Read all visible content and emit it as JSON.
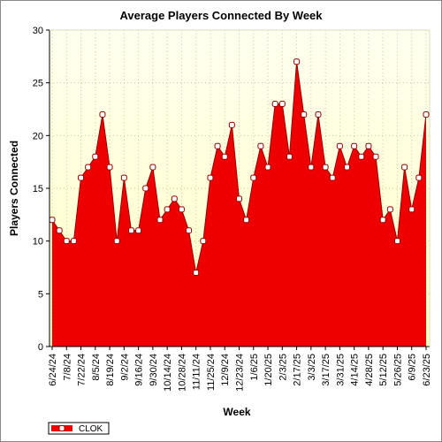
{
  "chart_data": {
    "type": "area",
    "title": "Average Players Connected By Week",
    "xlabel": "Week",
    "ylabel": "Players Connected",
    "ylim": [
      0,
      30
    ],
    "yticks": [
      0,
      5,
      10,
      15,
      20,
      25,
      30
    ],
    "grid": true,
    "legend_position": "bottom-left",
    "colors": {
      "plot_bg_top": "#fffff0",
      "plot_bg_bottom": "#ffffc4",
      "area_fill": "#ee0000",
      "line": "#990000",
      "marker_fill": "#ffffff"
    },
    "x_tick_labels": [
      "6/24/24",
      "7/8/24",
      "7/22/24",
      "8/5/24",
      "8/19/24",
      "9/2/24",
      "9/16/24",
      "9/30/24",
      "10/14/24",
      "10/28/24",
      "11/11/24",
      "11/25/24",
      "12/9/24",
      "12/23/24",
      "1/6/25",
      "1/20/25",
      "2/3/25",
      "2/17/25",
      "3/3/25",
      "3/17/25",
      "3/31/25",
      "4/14/25",
      "4/28/25",
      "5/12/25",
      "5/26/25",
      "6/9/25",
      "6/23/25"
    ],
    "x": [
      "6/24/24",
      "7/1/24",
      "7/8/24",
      "7/15/24",
      "7/22/24",
      "7/29/24",
      "8/5/24",
      "8/12/24",
      "8/19/24",
      "8/26/24",
      "9/2/24",
      "9/9/24",
      "9/16/24",
      "9/23/24",
      "9/30/24",
      "10/7/24",
      "10/14/24",
      "10/21/24",
      "10/28/24",
      "11/4/24",
      "11/11/24",
      "11/18/24",
      "11/25/24",
      "12/2/24",
      "12/9/24",
      "12/16/24",
      "12/23/24",
      "12/30/24",
      "1/6/25",
      "1/13/25",
      "1/20/25",
      "1/27/25",
      "2/3/25",
      "2/10/25",
      "2/17/25",
      "2/24/25",
      "3/3/25",
      "3/10/25",
      "3/17/25",
      "3/24/25",
      "3/31/25",
      "4/7/25",
      "4/14/25",
      "4/21/25",
      "4/28/25",
      "5/5/25",
      "5/12/25",
      "5/19/25",
      "5/26/25",
      "6/2/25",
      "6/9/25",
      "6/16/25",
      "6/23/25"
    ],
    "series": [
      {
        "name": "CLOK",
        "values": [
          12,
          11,
          10,
          10,
          16,
          17,
          18,
          22,
          17,
          10,
          16,
          11,
          11,
          15,
          17,
          12,
          13,
          14,
          13,
          11,
          7,
          10,
          16,
          19,
          18,
          21,
          14,
          12,
          16,
          19,
          17,
          23,
          23,
          18,
          27,
          22,
          17,
          22,
          17,
          16,
          19,
          17,
          19,
          18,
          19,
          18,
          12,
          13,
          10,
          17,
          13,
          16,
          22
        ]
      }
    ]
  }
}
